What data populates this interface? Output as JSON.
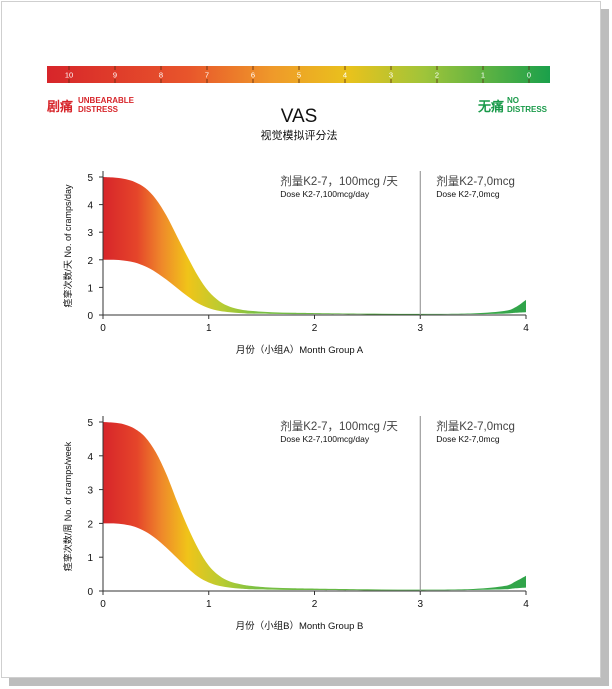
{
  "vas": {
    "scale": [
      "10",
      "9",
      "8",
      "7",
      "6",
      "5",
      "4",
      "3",
      "2",
      "1",
      "0"
    ],
    "left_cn": "剧痛",
    "left_en_1": "UNBEARABLE",
    "left_en_2": "DISTRESS",
    "right_cn": "无痛",
    "right_en_1": "NO",
    "right_en_2": "DISTRESS",
    "title": "VAS",
    "subtitle": "视觉模拟评分法"
  },
  "colors": {
    "red": "#d7252a",
    "orange": "#ee8a2b",
    "yellow": "#f0c419",
    "green": "#62b843",
    "deep_green": "#1aa04b",
    "text_red": "#d7252a",
    "text_green": "#1a9a4a",
    "axis": "#333333",
    "divider": "#8a8a8a"
  },
  "chart_data": [
    {
      "type": "area",
      "x": [
        0,
        0.1,
        0.2,
        0.3,
        0.4,
        0.5,
        0.6,
        0.7,
        0.8,
        0.9,
        1.0,
        1.1,
        1.2,
        1.3,
        1.4,
        1.6,
        1.8,
        2.0,
        2.5,
        3.0,
        3.5,
        3.8,
        3.9,
        4.0
      ],
      "upper": [
        5.0,
        4.98,
        4.93,
        4.82,
        4.6,
        4.2,
        3.6,
        2.85,
        2.1,
        1.4,
        0.85,
        0.5,
        0.3,
        0.2,
        0.15,
        0.1,
        0.08,
        0.07,
        0.05,
        0.04,
        0.06,
        0.15,
        0.28,
        0.55
      ],
      "lower": [
        2.0,
        2.0,
        1.97,
        1.9,
        1.76,
        1.55,
        1.28,
        0.98,
        0.68,
        0.42,
        0.25,
        0.15,
        0.1,
        0.07,
        0.05,
        0.04,
        0.03,
        0.03,
        0.02,
        0.02,
        0.03,
        0.05,
        0.08,
        0.1
      ],
      "xlim": [
        0,
        4
      ],
      "ylim": [
        0,
        5
      ],
      "x_ticks": [
        "0",
        "1",
        "2",
        "3",
        "4"
      ],
      "y_ticks": [
        "0",
        "1",
        "2",
        "3",
        "4",
        "5"
      ],
      "xlabel": "月份（小组A）Month Group A",
      "ylabel": "痉挛次数/天  No. of cramps/day",
      "divider_x": 3,
      "phase1_cn": "剂量K2-7，100mcg /天",
      "phase1_en": "Dose K2-7,100mcg/day",
      "phase2_cn": "剂量K2-7,0mcg",
      "phase2_en": "Dose K2-7,0mcg"
    },
    {
      "type": "area",
      "x": [
        0,
        0.1,
        0.2,
        0.3,
        0.4,
        0.5,
        0.6,
        0.7,
        0.8,
        0.9,
        1.0,
        1.1,
        1.2,
        1.3,
        1.4,
        1.6,
        1.8,
        2.0,
        2.5,
        3.0,
        3.5,
        3.8,
        3.9,
        4.0
      ],
      "upper": [
        5.0,
        4.98,
        4.93,
        4.8,
        4.55,
        4.1,
        3.45,
        2.65,
        1.9,
        1.25,
        0.75,
        0.45,
        0.28,
        0.2,
        0.15,
        0.1,
        0.08,
        0.07,
        0.05,
        0.04,
        0.06,
        0.15,
        0.28,
        0.45
      ],
      "lower": [
        2.0,
        2.0,
        1.97,
        1.9,
        1.76,
        1.55,
        1.28,
        0.98,
        0.68,
        0.42,
        0.25,
        0.15,
        0.1,
        0.07,
        0.05,
        0.04,
        0.03,
        0.03,
        0.02,
        0.02,
        0.03,
        0.05,
        0.08,
        0.1
      ],
      "xlim": [
        0,
        4
      ],
      "ylim": [
        0,
        5
      ],
      "x_ticks": [
        "0",
        "1",
        "2",
        "3",
        "4"
      ],
      "y_ticks": [
        "0",
        "1",
        "2",
        "3",
        "4",
        "5"
      ],
      "xlabel": "月份（小组B）Month Group B",
      "ylabel": "痉挛次数/周  No. of cramps/week",
      "divider_x": 3,
      "phase1_cn": "剂量K2-7，100mcg /天",
      "phase1_en": "Dose K2-7,100mcg/day",
      "phase2_cn": "剂量K2-7,0mcg",
      "phase2_en": "Dose K2-7,0mcg"
    }
  ]
}
